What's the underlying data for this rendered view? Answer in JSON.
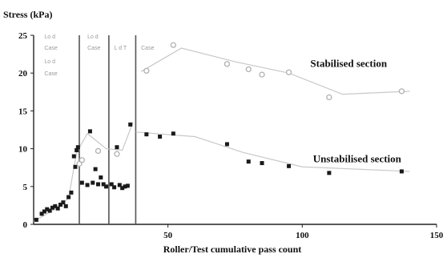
{
  "chart_data": {
    "type": "scatter",
    "title": "",
    "xlabel": "Roller/Test cumulative pass count",
    "ylabel": "Stress (kPa)",
    "xlim": [
      0,
      150
    ],
    "ylim": [
      0,
      25
    ],
    "xticks": [
      50,
      100,
      150
    ],
    "yticks": [
      0,
      5,
      10,
      15,
      20,
      25
    ],
    "grid": false,
    "legend": "none",
    "vertical_lines_x": [
      17,
      28,
      38
    ],
    "faint_labels": [
      {
        "text": "Lo d",
        "x": 4,
        "y": 24.6
      },
      {
        "text": "Case",
        "x": 4,
        "y": 23.1
      },
      {
        "text": "Lo d",
        "x": 20,
        "y": 24.6
      },
      {
        "text": "Case",
        "x": 20,
        "y": 23.1
      },
      {
        "text": "L d T",
        "x": 30,
        "y": 23.1
      },
      {
        "text": "Case",
        "x": 40,
        "y": 23.1
      },
      {
        "text": "Lo d",
        "x": 4,
        "y": 21.3
      },
      {
        "text": "Case",
        "x": 4,
        "y": 19.7
      }
    ],
    "annotations": [
      {
        "text": "Stabilised section",
        "x": 103,
        "y": 20.8
      },
      {
        "text": "Unstabilised section",
        "x": 104,
        "y": 8.2
      }
    ],
    "colors": {
      "stabilised": "#b0b0b0",
      "unstabilised": "#1a1a1a",
      "axis": "#222222",
      "trend": "#c8c8c8",
      "vline": "#555555"
    },
    "series": [
      {
        "id": "stabilised",
        "marker": "open",
        "points": [
          [
            42,
            20.3
          ],
          [
            52,
            23.7
          ],
          [
            72,
            21.2
          ],
          [
            80,
            20.5
          ],
          [
            85,
            19.8
          ],
          [
            95,
            20.1
          ],
          [
            110,
            16.8
          ],
          [
            137,
            17.6
          ]
        ]
      },
      {
        "id": "unstabilised",
        "marker": "filled",
        "points": [
          [
            1,
            0.6
          ],
          [
            3,
            1.4
          ],
          [
            4,
            1.7
          ],
          [
            5,
            2.0
          ],
          [
            6,
            1.8
          ],
          [
            7,
            2.2
          ],
          [
            8,
            2.4
          ],
          [
            9,
            2.1
          ],
          [
            10,
            2.6
          ],
          [
            11,
            2.9
          ],
          [
            12,
            2.4
          ],
          [
            13,
            3.6
          ],
          [
            14,
            4.2
          ],
          [
            15,
            9.0
          ],
          [
            15.5,
            7.6
          ],
          [
            16,
            9.8
          ],
          [
            16.5,
            10.2
          ],
          [
            18,
            5.5
          ],
          [
            20,
            5.2
          ],
          [
            21,
            12.3
          ],
          [
            22,
            5.5
          ],
          [
            23,
            7.3
          ],
          [
            24,
            5.3
          ],
          [
            25,
            6.2
          ],
          [
            26,
            5.3
          ],
          [
            27,
            5.0
          ],
          [
            29,
            5.3
          ],
          [
            30,
            4.9
          ],
          [
            31,
            10.2
          ],
          [
            32,
            5.2
          ],
          [
            33,
            4.8
          ],
          [
            34,
            5.0
          ],
          [
            35,
            5.1
          ],
          [
            36,
            13.2
          ],
          [
            42,
            11.9
          ],
          [
            47,
            11.6
          ],
          [
            52,
            12.0
          ],
          [
            72,
            10.6
          ],
          [
            80,
            8.3
          ],
          [
            85,
            8.1
          ],
          [
            95,
            7.7
          ],
          [
            110,
            6.8
          ],
          [
            137,
            7.0
          ]
        ]
      },
      {
        "id": "early-open",
        "marker": "open",
        "points": [
          [
            17,
            8.0
          ],
          [
            18,
            8.5
          ],
          [
            24,
            9.7
          ],
          [
            31,
            9.3
          ]
        ]
      }
    ],
    "trend_lines": [
      {
        "id": "stabilised-trend",
        "points": [
          [
            40,
            20.2
          ],
          [
            55,
            23.3
          ],
          [
            75,
            21.5
          ],
          [
            95,
            20.0
          ],
          [
            115,
            17.2
          ],
          [
            140,
            17.6
          ]
        ]
      },
      {
        "id": "unstabilised-trend",
        "points": [
          [
            38,
            12.2
          ],
          [
            60,
            11.6
          ],
          [
            78,
            9.5
          ],
          [
            100,
            7.6
          ],
          [
            140,
            7.0
          ]
        ]
      },
      {
        "id": "early-rise",
        "points": [
          [
            0,
            0.4
          ],
          [
            8,
            2.0
          ],
          [
            13,
            3.5
          ],
          [
            16,
            9.5
          ],
          [
            20,
            12.0
          ],
          [
            27,
            10.0
          ],
          [
            33,
            9.8
          ],
          [
            37,
            13.5
          ]
        ]
      }
    ]
  }
}
